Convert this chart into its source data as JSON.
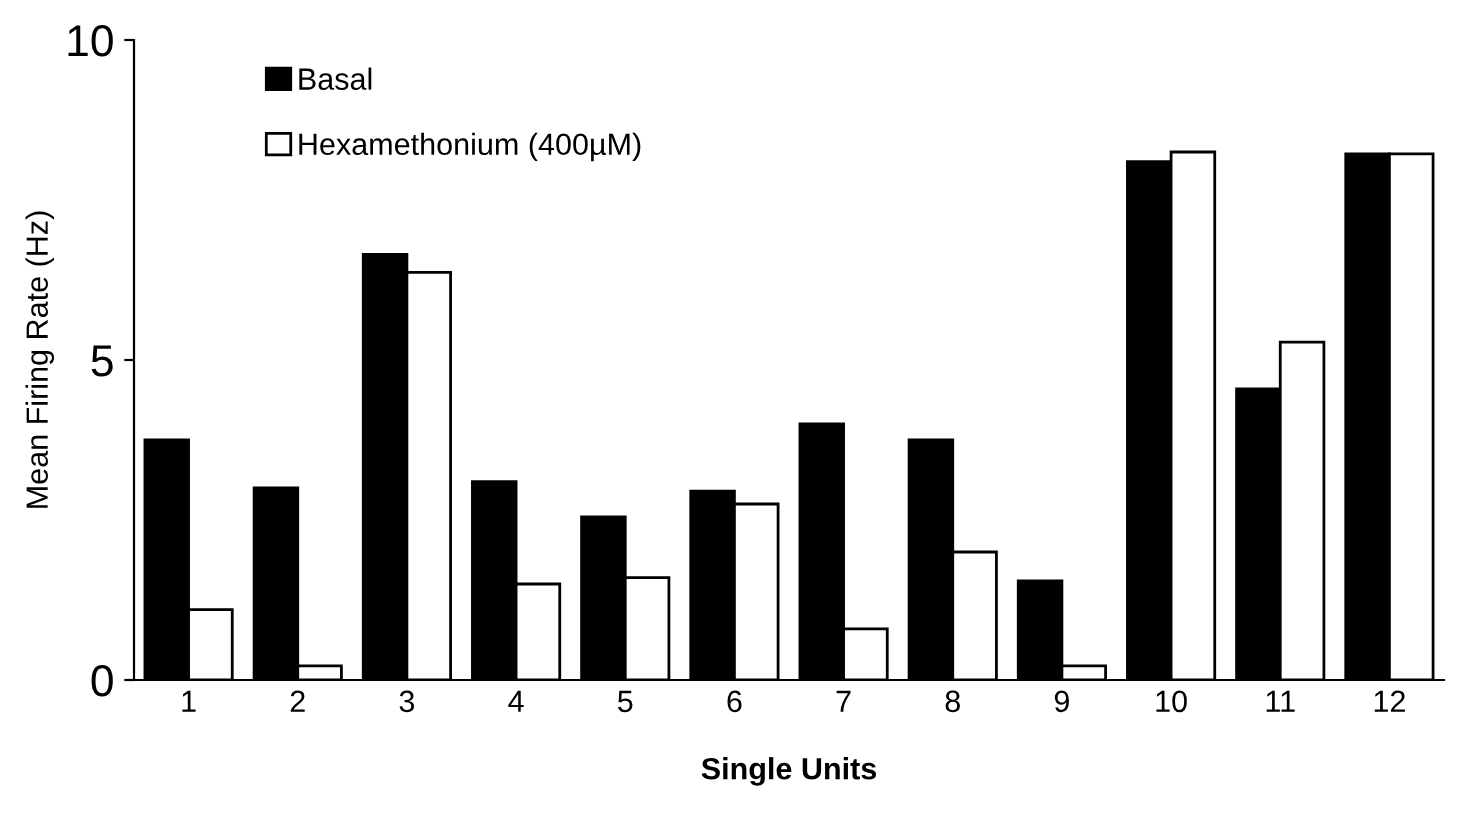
{
  "chart_data": {
    "type": "bar",
    "xlabel": "Single Units",
    "ylabel": "Mean Firing Rate (Hz)",
    "categories": [
      "1",
      "2",
      "3",
      "4",
      "5",
      "6",
      "7",
      "8",
      "9",
      "10",
      "11",
      "12"
    ],
    "series": [
      {
        "name": "Basal",
        "color": "#000000",
        "values": [
          3.75,
          3.0,
          6.65,
          3.1,
          2.55,
          2.95,
          4.0,
          3.75,
          1.55,
          8.1,
          4.55,
          8.22
        ]
      },
      {
        "name": "Hexamethonium (400µM)",
        "color": "#ffffff",
        "values": [
          1.1,
          0.22,
          6.37,
          1.5,
          1.6,
          2.75,
          0.8,
          2.0,
          0.22,
          8.25,
          5.28,
          8.22
        ]
      }
    ],
    "ylim": [
      0,
      10
    ],
    "yticks": [
      0,
      5,
      10
    ],
    "grid": false,
    "legend": "top left"
  }
}
